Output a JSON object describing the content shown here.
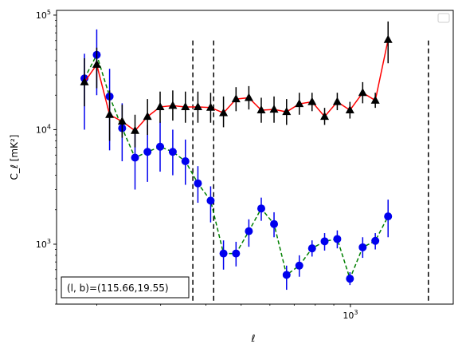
{
  "chart_data": {
    "type": "line",
    "xlabel": "ℓ",
    "ylabel": "C_ℓ  [mK²]",
    "x_scale": "log",
    "y_scale": "log",
    "xlim": [
      155,
      1920
    ],
    "ylim": [
      300,
      110000
    ],
    "x_major_ticks": [
      {
        "value": 1000,
        "label": "10",
        "exp": "3"
      }
    ],
    "y_major_ticks": [
      {
        "value": 1000,
        "label": "10",
        "exp": "3"
      },
      {
        "value": 10000,
        "label": "10",
        "exp": "4"
      },
      {
        "value": 100000,
        "label": "10",
        "exp": "5"
      }
    ],
    "vertical_lines": [
      368,
      420,
      1640
    ],
    "annotation": "(l, b)=(115.66,19.55)",
    "legend": "top-right (empty)",
    "series": [
      {
        "marker": "circle",
        "color": "#0000ee",
        "line_color": "#008000",
        "line_style": "dashed",
        "points": [
          {
            "x": 185,
            "y": 28000,
            "lo": 10000,
            "hi": 46000
          },
          {
            "x": 200,
            "y": 45000,
            "lo": 20000,
            "hi": 75000
          },
          {
            "x": 217,
            "y": 19500,
            "lo": 6600,
            "hi": 34000
          },
          {
            "x": 235,
            "y": 10300,
            "lo": 5300,
            "hi": 17000
          },
          {
            "x": 255,
            "y": 5700,
            "lo": 3000,
            "hi": 9500
          },
          {
            "x": 276,
            "y": 6400,
            "lo": 3500,
            "hi": 11000
          },
          {
            "x": 299,
            "y": 7100,
            "lo": 4300,
            "hi": 11700
          },
          {
            "x": 324,
            "y": 6400,
            "lo": 4000,
            "hi": 10000
          },
          {
            "x": 351,
            "y": 5300,
            "lo": 3300,
            "hi": 8200
          },
          {
            "x": 380,
            "y": 3400,
            "lo": 2300,
            "hi": 4800
          },
          {
            "x": 412,
            "y": 2400,
            "lo": 1550,
            "hi": 3200
          },
          {
            "x": 447,
            "y": 830,
            "lo": 600,
            "hi": 1080
          },
          {
            "x": 484,
            "y": 830,
            "lo": 640,
            "hi": 1050
          },
          {
            "x": 525,
            "y": 1300,
            "lo": 950,
            "hi": 1650
          },
          {
            "x": 568,
            "y": 2050,
            "lo": 1600,
            "hi": 2550
          },
          {
            "x": 616,
            "y": 1500,
            "lo": 1150,
            "hi": 1900
          },
          {
            "x": 667,
            "y": 540,
            "lo": 400,
            "hi": 650
          },
          {
            "x": 723,
            "y": 650,
            "lo": 520,
            "hi": 800
          },
          {
            "x": 784,
            "y": 920,
            "lo": 780,
            "hi": 1080
          },
          {
            "x": 849,
            "y": 1060,
            "lo": 880,
            "hi": 1250
          },
          {
            "x": 920,
            "y": 1110,
            "lo": 920,
            "hi": 1320
          },
          {
            "x": 997,
            "y": 500,
            "lo": 440,
            "hi": 570
          },
          {
            "x": 1081,
            "y": 940,
            "lo": 760,
            "hi": 1150
          },
          {
            "x": 1171,
            "y": 1070,
            "lo": 900,
            "hi": 1250
          },
          {
            "x": 1270,
            "y": 1750,
            "lo": 1150,
            "hi": 2450
          }
        ]
      },
      {
        "marker": "triangle",
        "color": "#000000",
        "line_color": "#ff0000",
        "line_style": "solid",
        "points": [
          {
            "x": 185,
            "y": 26000,
            "lo": 16000,
            "hi": 42000
          },
          {
            "x": 200,
            "y": 37000,
            "lo": 23000,
            "hi": 52000
          },
          {
            "x": 217,
            "y": 13500,
            "lo": 8000,
            "hi": 22000
          },
          {
            "x": 235,
            "y": 11800,
            "lo": 8500,
            "hi": 16500
          },
          {
            "x": 255,
            "y": 9800,
            "lo": 7000,
            "hi": 13500
          },
          {
            "x": 276,
            "y": 13000,
            "lo": 9000,
            "hi": 18500
          },
          {
            "x": 299,
            "y": 15800,
            "lo": 11500,
            "hi": 21500
          },
          {
            "x": 324,
            "y": 16200,
            "lo": 12000,
            "hi": 22000
          },
          {
            "x": 351,
            "y": 15800,
            "lo": 11500,
            "hi": 21500
          },
          {
            "x": 380,
            "y": 15800,
            "lo": 11500,
            "hi": 21500
          },
          {
            "x": 412,
            "y": 15600,
            "lo": 11500,
            "hi": 21000
          },
          {
            "x": 447,
            "y": 14000,
            "lo": 10500,
            "hi": 19500
          },
          {
            "x": 484,
            "y": 18500,
            "lo": 14500,
            "hi": 23500
          },
          {
            "x": 525,
            "y": 19000,
            "lo": 15000,
            "hi": 24000
          },
          {
            "x": 568,
            "y": 14800,
            "lo": 11500,
            "hi": 19000
          },
          {
            "x": 616,
            "y": 15000,
            "lo": 11500,
            "hi": 19500
          },
          {
            "x": 667,
            "y": 14300,
            "lo": 11000,
            "hi": 18500
          },
          {
            "x": 723,
            "y": 16800,
            "lo": 13500,
            "hi": 21000
          },
          {
            "x": 784,
            "y": 17500,
            "lo": 14500,
            "hi": 21000
          },
          {
            "x": 849,
            "y": 13000,
            "lo": 11000,
            "hi": 15500
          },
          {
            "x": 920,
            "y": 17500,
            "lo": 14800,
            "hi": 21000
          },
          {
            "x": 997,
            "y": 14800,
            "lo": 12500,
            "hi": 17500
          },
          {
            "x": 1081,
            "y": 21000,
            "lo": 17000,
            "hi": 26000
          },
          {
            "x": 1171,
            "y": 18000,
            "lo": 15500,
            "hi": 21000
          },
          {
            "x": 1270,
            "y": 61000,
            "lo": 38000,
            "hi": 88000
          }
        ]
      }
    ]
  }
}
